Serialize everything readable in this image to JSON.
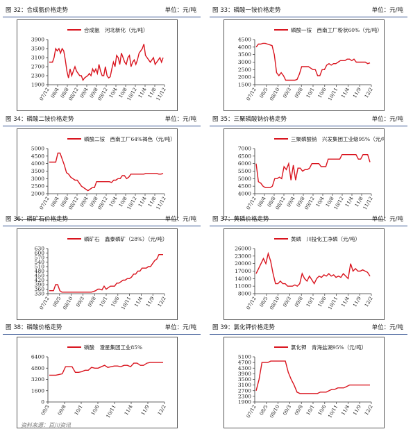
{
  "colors": {
    "line": "#d9141e",
    "axis": "#333333",
    "header_rule": "#2f4f8f"
  },
  "source": "资料来源：百川资讯",
  "charts": [
    {
      "title": "图 32：合成氨价格走势",
      "unit": "单位：元/吨",
      "chart_data": {
        "type": "line",
        "legend": "合成氨　河北新化（元/吨）",
        "ylim": [
          1900,
          3900
        ],
        "yticks": [
          1900,
          2300,
          2700,
          3100,
          3500,
          3900
        ],
        "xticks": [
          "07/12",
          "08/4",
          "08/8",
          "08/12",
          "09/4",
          "09/8",
          "09/12",
          "10/4",
          "10/8",
          "10/12",
          "11/4",
          "11/8",
          "11/12"
        ],
        "values": [
          2900,
          2900,
          2900,
          3100,
          3500,
          3400,
          3500,
          3300,
          3500,
          3400,
          3000,
          2500,
          2200,
          2600,
          2300,
          2500,
          2700,
          2500,
          2400,
          2300,
          2300,
          2100,
          2200,
          2250,
          2300,
          2400,
          2300,
          2600,
          2450,
          2600,
          2400,
          2800,
          2500,
          2300,
          2300,
          2700,
          2300,
          2200,
          2250,
          2600,
          2900,
          2700,
          3200,
          3100,
          2800,
          3300,
          3100,
          2900,
          2800,
          3100,
          3200,
          2700,
          2900,
          3000,
          2800,
          3000,
          3300,
          3400,
          3500,
          3700,
          3200,
          3100,
          3000,
          2900,
          3000,
          3100,
          2800,
          2900,
          3000,
          3100,
          2900,
          3100
        ]
      }
    },
    {
      "title": "图 33：磷酸一铵价格走势",
      "unit": "单位：元/吨",
      "chart_data": {
        "type": "line",
        "legend": "磷酸一铵　西南工厂粉状60%（元/吨）",
        "ylim": [
          1500,
          4500
        ],
        "yticks": [
          1500,
          2000,
          2500,
          3000,
          3500,
          4000,
          4500
        ],
        "xticks": [
          "07/12",
          "08/5",
          "08/10",
          "09/3",
          "09/8",
          "10/1",
          "10/6",
          "10/11",
          "11/4",
          "11/9",
          "12/2"
        ],
        "values": [
          4000,
          4200,
          4200,
          4250,
          4250,
          4200,
          4150,
          4100,
          3500,
          2300,
          2100,
          2300,
          2100,
          1800,
          1800,
          1800,
          1800,
          1800,
          1850,
          2200,
          2700,
          2700,
          2700,
          2700,
          2600,
          2500,
          2500,
          2100,
          2100,
          2500,
          2500,
          2800,
          2900,
          2800,
          2900,
          2900,
          3000,
          3100,
          3100,
          3100,
          3200,
          3200,
          3100,
          3200,
          3000,
          3000,
          3000,
          3000,
          3000,
          2900,
          2950
        ]
      }
    },
    {
      "title": "图 34：磷酸二铵价格走势",
      "unit": "单位：元/吨",
      "chart_data": {
        "type": "line",
        "legend": "磷酸二铵　西南工厂64%褐色（元/吨）",
        "ylim": [
          2000,
          5000
        ],
        "yticks": [
          2000,
          2500,
          3000,
          3500,
          4000,
          4500,
          5000
        ],
        "xticks": [
          "07/12",
          "08/4",
          "08/8",
          "08/12",
          "09/4",
          "09/8",
          "09/12",
          "10/4",
          "10/8",
          "10/12",
          "11/4",
          "11/8",
          "11/12"
        ],
        "values": [
          4100,
          4100,
          4100,
          4100,
          4700,
          4700,
          4300,
          3900,
          3400,
          3300,
          3100,
          3000,
          2900,
          2900,
          2700,
          2500,
          2400,
          2300,
          2200,
          2300,
          2400,
          2400,
          2800,
          2800,
          2800,
          2800,
          2800,
          2800,
          2800,
          2750,
          2900,
          2900,
          3000,
          3000,
          3200,
          3200,
          3000,
          3100,
          3300,
          3300,
          3300,
          3300,
          3300,
          3300,
          3300,
          3350,
          3350,
          3350,
          3350,
          3350,
          3350,
          3300,
          3300,
          3350
        ]
      }
    },
    {
      "title": "图 35：三聚磷酸钠价格走势",
      "unit": "单位：元/吨",
      "chart_data": {
        "type": "line",
        "legend": "三聚磷酸钠　兴发集团工业级95%（元/吨）",
        "ylim": [
          4000,
          7000
        ],
        "yticks": [
          4000,
          4500,
          5000,
          5500,
          6000,
          6500,
          7000
        ],
        "xticks": [
          "07/12",
          "08/4",
          "08/8",
          "08/12",
          "09/4",
          "09/8",
          "09/12",
          "10/4",
          "10/8",
          "10/12",
          "11/4",
          "11/8",
          "11/12"
        ],
        "values": [
          6000,
          4800,
          4700,
          4500,
          4400,
          4400,
          4400,
          4500,
          5000,
          5000,
          5100,
          5000,
          5800,
          5600,
          6000,
          4900,
          5900,
          4900,
          5700,
          5700,
          5500,
          5600,
          5600,
          5700,
          6000,
          6000,
          6000,
          6000,
          5800,
          5800,
          5800,
          6300,
          6300,
          6300,
          6300,
          6300,
          6300,
          6600,
          6600,
          6600,
          6600,
          6600,
          6600,
          6600,
          6300,
          6300,
          6600,
          6600,
          6600,
          6100
        ]
      }
    },
    {
      "title": "图 36：磷矿石价格走势",
      "unit": "单位：元/吨",
      "chart_data": {
        "type": "line",
        "legend": "磷矿石　鑫泰磷矿（28%）（元/吨）",
        "ylim": [
          330,
          630
        ],
        "yticks": [
          330,
          360,
          390,
          420,
          450,
          480,
          510,
          540,
          570,
          600,
          630
        ],
        "xticks": [
          "07/12",
          "08/5",
          "08/10",
          "09/3",
          "09/8",
          "10/1",
          "10/6",
          "10/11",
          "11/4",
          "11/9",
          "12/2"
        ],
        "values": [
          350,
          350,
          350,
          390,
          390,
          350,
          340,
          340,
          340,
          340,
          340,
          340,
          340,
          340,
          340,
          340,
          340,
          340,
          340,
          340,
          340,
          345,
          350,
          360,
          360,
          355,
          380,
          360,
          370,
          380,
          380,
          380,
          400,
          400,
          410,
          420,
          420,
          430,
          430,
          440,
          460,
          460,
          480,
          480,
          500,
          500,
          500,
          510,
          510,
          530,
          550,
          560,
          590,
          590,
          590
        ]
      }
    },
    {
      "title": "图 37：黄磷价格走势",
      "unit": "单位：元/吨",
      "chart_data": {
        "type": "line",
        "legend": "黄磷　川投化工净磷（元/吨）",
        "ylim": [
          8000,
          26000
        ],
        "yticks": [
          8000,
          11000,
          14000,
          17000,
          20000,
          23000,
          26000
        ],
        "xticks": [
          "07/12",
          "08/5",
          "08/10",
          "09/3",
          "09/8",
          "10/1",
          "10/6",
          "10/11",
          "11/4",
          "11/9",
          "12/2"
        ],
        "values": [
          16000,
          18000,
          20000,
          22000,
          20000,
          24000,
          21000,
          16000,
          12000,
          12000,
          13000,
          12000,
          12000,
          11000,
          11000,
          11000,
          11500,
          11000,
          12000,
          16000,
          14000,
          13000,
          15000,
          13500,
          12000,
          14000,
          15000,
          14500,
          15500,
          15000,
          16000,
          15000,
          15500,
          14500,
          15000,
          14500,
          16000,
          15000,
          14000,
          20000,
          17000,
          18000,
          17000,
          17000,
          17500,
          17000,
          16500,
          15000
        ]
      }
    },
    {
      "title": "图 38：磷酸价格走势",
      "unit": "单位：元/吨",
      "chart_data": {
        "type": "line",
        "legend": "磷酸　澄星集团工业85%",
        "ylim": [
          0,
          6400
        ],
        "yticks": [
          0,
          1600,
          3200,
          4800,
          6400
        ],
        "xticks": [
          "09/3",
          "09/8",
          "10/1",
          "10/6",
          "10/11",
          "11/4",
          "11/9",
          "12/2"
        ],
        "values": [
          3800,
          3800,
          3800,
          3900,
          4000,
          5000,
          5000,
          5000,
          4200,
          4200,
          4300,
          4500,
          4500,
          4900,
          4800,
          4800,
          5000,
          5200,
          4900,
          5000,
          5100,
          5100,
          5000,
          5200,
          5200,
          5000,
          5500,
          5500,
          5200,
          5200,
          5500,
          5600,
          5600,
          5600,
          5600,
          5600
        ]
      }
    },
    {
      "title": "图 39：氯化钾价格走势",
      "unit": "单位：元/吨",
      "chart_data": {
        "type": "line",
        "legend": "氯化钾　青海盐湖95%（元/吨）",
        "ylim": [
          1900,
          5100
        ],
        "yticks": [
          1900,
          2300,
          2700,
          3100,
          3500,
          3900,
          4300,
          4700,
          5100
        ],
        "xticks": [
          "07/12",
          "08/5",
          "08/10",
          "09/3",
          "09/8",
          "10/1",
          "10/6",
          "10/11",
          "11/4",
          "11/9",
          "12/2"
        ],
        "values": [
          2700,
          3500,
          4700,
          4700,
          4700,
          4800,
          4800,
          4800,
          4800,
          4800,
          4800,
          4000,
          3500,
          3100,
          2600,
          2500,
          2500,
          2500,
          2500,
          2500,
          2500,
          2500,
          2600,
          2600,
          2600,
          2700,
          2800,
          2800,
          2900,
          2900,
          2900,
          3000,
          3100,
          3100,
          3100,
          3100,
          3100,
          3100,
          3100,
          3100
        ]
      }
    }
  ]
}
